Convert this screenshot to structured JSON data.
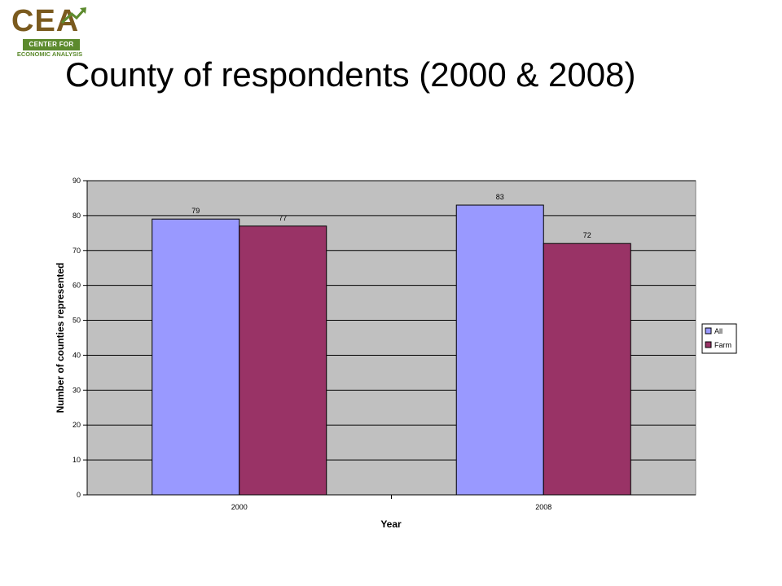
{
  "logo": {
    "letters": "CEA",
    "bar_text": "CENTER FOR",
    "sub_text": "ECONOMIC ANALYSIS"
  },
  "title": "County of respondents (2000 & 2008)",
  "chart_data": {
    "type": "bar",
    "categories": [
      "2000",
      "2008"
    ],
    "series": [
      {
        "name": "All",
        "values": [
          79,
          83
        ],
        "color": "#9999ff"
      },
      {
        "name": "Farm",
        "values": [
          77,
          72
        ],
        "color": "#993366"
      }
    ],
    "xlabel": "Year",
    "ylabel": "Number of counties represented",
    "ylim": [
      0,
      90
    ],
    "yticks": [
      0,
      10,
      20,
      30,
      40,
      50,
      60,
      70,
      80,
      90
    ],
    "grid": true,
    "legend": "right",
    "plot_background": "#c0c0c0",
    "data_labels": true
  }
}
